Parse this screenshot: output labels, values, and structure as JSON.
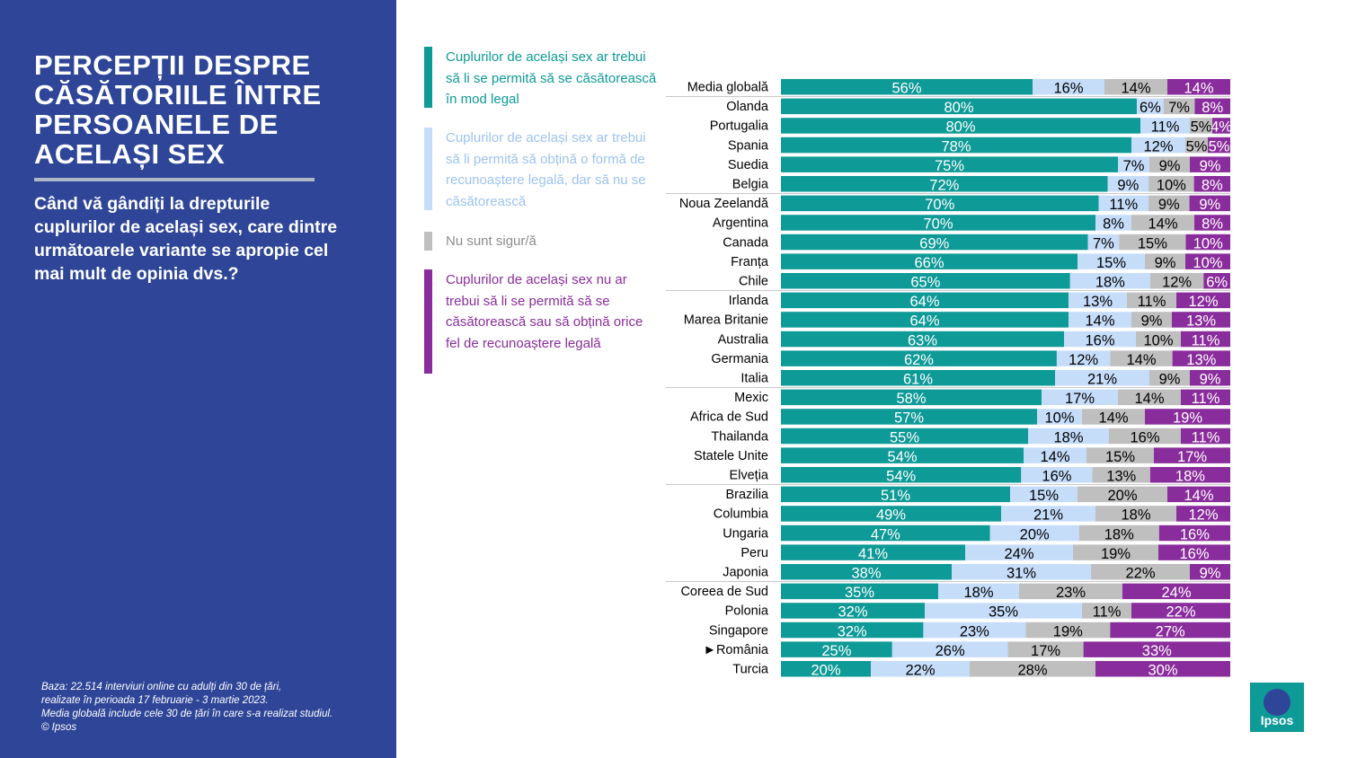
{
  "left_panel": {
    "title": "PERCEPȚII DESPRE CĂSĂTORIILE ÎNTRE PERSOANELE DE ACELAȘI SEX",
    "question": "Când vă gândiți la drepturile cuplurilor de același sex, care dintre următoarele variante se apropie cel mai mult de opinia dvs.?",
    "footnote": [
      "Baza: 22.514 interviuri online cu adulți din 30 de țări,",
      "realizate în perioada 17 februarie - 3 martie 2023.",
      "Media globală include cele 30 de țări în care s-a realizat studiul.",
      "© Ipsos"
    ]
  },
  "legend": [
    {
      "label": "Cuplurilor de același sex ar trebui să li se permită să se căsătorească în mod legal",
      "color": "#0e9a97"
    },
    {
      "label": "Cuplurilor de același sex ar trebui să li permită să obțină o formă de recunoaștere legală, dar să nu se căsătorească",
      "color": "#c6ddfa"
    },
    {
      "label": "Nu sunt sigur/ă",
      "color": "#bfbfbf"
    },
    {
      "label": "Cuplurilor de același sex nu ar trebui să li se permită să se căsătorească sau să obțină orice fel de recunoaștere legală",
      "color": "#8a2d9c"
    }
  ],
  "logo": {
    "text": "Ipsos",
    "color": "#0e9a97"
  },
  "chart_data": {
    "type": "bar",
    "orientation": "horizontal",
    "stacked": true,
    "categories": [
      "Media globală",
      "Olanda",
      "Portugalia",
      "Spania",
      "Suedia",
      "Belgia",
      "Noua Zeelandă",
      "Argentina",
      "Canada",
      "Franța",
      "Chile",
      "Irlanda",
      "Marea Britanie",
      "Australia",
      "Germania",
      "Italia",
      "Mexic",
      "Africa de Sud",
      "Thailanda",
      "Statele Unite",
      "Elveția",
      "Brazilia",
      "Columbia",
      "Ungaria",
      "Peru",
      "Japonia",
      "Coreea de Sud",
      "Polonia",
      "Singapore",
      "►România",
      "Turcia"
    ],
    "series": [
      {
        "name": "Cuplurilor de același sex ar trebui să li se permită să se căsătorească în mod legal",
        "color": "#0e9a97",
        "label_color": "#ffffff",
        "values": [
          56,
          80,
          80,
          78,
          75,
          72,
          70,
          70,
          69,
          66,
          65,
          64,
          64,
          63,
          62,
          61,
          58,
          57,
          55,
          54,
          54,
          51,
          49,
          47,
          41,
          38,
          35,
          32,
          32,
          25,
          20
        ]
      },
      {
        "name": "Cuplurilor de același sex ar trebui să li permită să obțină o formă de recunoaștere legală, dar să nu se căsătorească",
        "color": "#c6ddfa",
        "label_color": "#000000",
        "values": [
          16,
          6,
          11,
          12,
          7,
          9,
          11,
          8,
          7,
          15,
          18,
          13,
          14,
          16,
          12,
          21,
          17,
          10,
          18,
          14,
          16,
          15,
          21,
          20,
          24,
          31,
          18,
          35,
          23,
          26,
          22
        ]
      },
      {
        "name": "Nu sunt sigur/ă",
        "color": "#bfbfbf",
        "label_color": "#000000",
        "values": [
          14,
          7,
          5,
          5,
          9,
          10,
          9,
          14,
          15,
          9,
          12,
          11,
          9,
          10,
          14,
          9,
          14,
          14,
          16,
          15,
          13,
          20,
          18,
          18,
          19,
          22,
          23,
          11,
          19,
          17,
          28
        ]
      },
      {
        "name": "Cuplurilor de același sex nu ar trebui să li se permită să se căsătorească sau să obțină orice fel de recunoaștere legală",
        "color": "#8a2d9c",
        "label_color": "#ffffff",
        "values": [
          14,
          8,
          4,
          5,
          9,
          8,
          9,
          8,
          10,
          10,
          6,
          12,
          13,
          11,
          13,
          9,
          11,
          19,
          11,
          17,
          18,
          14,
          12,
          16,
          16,
          9,
          24,
          22,
          27,
          33,
          30
        ]
      }
    ],
    "value_suffix": "%",
    "group_separators_after": [
      "Media globală",
      "Belgia",
      "Chile",
      "Italia",
      "Elveția",
      "Japonia"
    ]
  }
}
